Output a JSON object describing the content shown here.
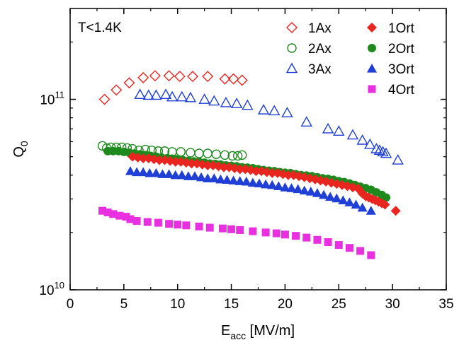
{
  "chart_data": {
    "type": "scatter",
    "title": "",
    "annotation": "T<1.4K",
    "xlabel": {
      "main": "E",
      "sub": "acc",
      "suffix": " [MV/m]"
    },
    "ylabel": {
      "main": "Q",
      "sub": "0"
    },
    "xlim": [
      0,
      35
    ],
    "ylim": [
      10000000000.0,
      300000000000.0
    ],
    "y_scale": "log",
    "x_ticks": [
      0,
      5,
      10,
      15,
      20,
      25,
      30,
      35
    ],
    "x_tick_labels": [
      "0",
      "5",
      "10",
      "15",
      "20",
      "25",
      "30",
      "35"
    ],
    "y_tick_labels": [
      {
        "value": 10000000000.0,
        "base": "10",
        "exp": "10"
      },
      {
        "value": 100000000000.0,
        "base": "10",
        "exp": "11"
      }
    ],
    "grid": false,
    "legend_position": "top-right",
    "series": [
      {
        "name": "1Ax",
        "color": "#e8251f",
        "marker": "diamond-open",
        "x": [
          3.2,
          4.3,
          5.5,
          6.8,
          7.9,
          9.2,
          10.2,
          11.4,
          12.8,
          14.4,
          15.2,
          16.0
        ],
        "y": [
          100000000000.0,
          112000000000.0,
          122000000000.0,
          130000000000.0,
          133000000000.0,
          133000000000.0,
          132000000000.0,
          132000000000.0,
          132000000000.0,
          128000000000.0,
          128000000000.0,
          126000000000.0
        ]
      },
      {
        "name": "2Ax",
        "color": "#1e8a1e",
        "marker": "circle-open",
        "x": [
          3.0,
          3.4,
          3.8,
          4.3,
          4.8,
          5.3,
          5.8,
          6.4,
          7.0,
          7.6,
          8.2,
          8.8,
          9.5,
          10.3,
          11.2,
          12.0,
          12.8,
          13.6,
          14.4,
          15.1,
          15.6,
          16.0
        ],
        "y": [
          57000000000.0,
          55500000000.0,
          56000000000.0,
          56000000000.0,
          56000000000.0,
          55500000000.0,
          55000000000.0,
          54000000000.0,
          54500000000.0,
          54000000000.0,
          53500000000.0,
          53500000000.0,
          53000000000.0,
          53000000000.0,
          52500000000.0,
          52000000000.0,
          52000000000.0,
          51500000000.0,
          51000000000.0,
          50500000000.0,
          50500000000.0,
          51000000000.0
        ]
      },
      {
        "name": "3Ax",
        "color": "#1f3fd6",
        "marker": "triangle-open",
        "x": [
          6.5,
          7.3,
          8.0,
          8.9,
          9.5,
          10.4,
          11.2,
          12.5,
          13.4,
          14.5,
          15.5,
          16.5,
          18.0,
          19.0,
          20.2,
          22.0,
          24.0,
          25.0,
          26.3,
          27.2,
          27.9,
          28.5,
          28.8,
          29.1,
          29.4,
          30.5
        ],
        "y": [
          106000000000.0,
          105000000000.0,
          105000000000.0,
          106000000000.0,
          103000000000.0,
          103000000000.0,
          102000000000.0,
          100000000000.0,
          98000000000.0,
          96000000000.0,
          95000000000.0,
          93000000000.0,
          88000000000.0,
          87000000000.0,
          85000000000.0,
          76000000000.0,
          70000000000.0,
          68000000000.0,
          65000000000.0,
          61000000000.0,
          58000000000.0,
          55000000000.0,
          54000000000.0,
          53000000000.0,
          52000000000.0,
          48000000000.0
        ]
      },
      {
        "name": "1Ort",
        "color": "#e8251f",
        "marker": "diamond-filled",
        "x": [
          5.8,
          6.3,
          6.8,
          7.3,
          7.8,
          8.3,
          8.8,
          9.3,
          9.8,
          10.3,
          10.8,
          11.3,
          11.8,
          12.3,
          12.8,
          13.3,
          13.8,
          14.3,
          14.8,
          15.3,
          15.8,
          16.3,
          16.8,
          17.3,
          17.8,
          18.3,
          18.8,
          19.3,
          19.8,
          20.3,
          20.8,
          21.3,
          21.8,
          22.3,
          22.8,
          23.3,
          23.8,
          24.3,
          24.8,
          25.3,
          25.8,
          26.3,
          26.8,
          27.2,
          27.5,
          27.8,
          28.1,
          28.4,
          28.7,
          29.0,
          29.3,
          30.3
        ],
        "y": [
          50000000000.0,
          49500000000.0,
          49000000000.0,
          49000000000.0,
          48500000000.0,
          48000000000.0,
          48000000000.0,
          47500000000.0,
          47000000000.0,
          47000000000.0,
          46500000000.0,
          46000000000.0,
          46000000000.0,
          45500000000.0,
          45000000000.0,
          45000000000.0,
          44500000000.0,
          44000000000.0,
          44000000000.0,
          43500000000.0,
          43000000000.0,
          43000000000.0,
          42500000000.0,
          42000000000.0,
          42000000000.0,
          41500000000.0,
          41000000000.0,
          41000000000.0,
          40500000000.0,
          40000000000.0,
          40000000000.0,
          39500000000.0,
          39000000000.0,
          38500000000.0,
          38000000000.0,
          37500000000.0,
          37000000000.0,
          36500000000.0,
          36000000000.0,
          35500000000.0,
          35000000000.0,
          34500000000.0,
          34000000000.0,
          32000000000.0,
          31000000000.0,
          30500000000.0,
          30000000000.0,
          29500000000.0,
          29000000000.0,
          28500000000.0,
          28000000000.0,
          26000000000.0
        ]
      },
      {
        "name": "2Ort",
        "color": "#1e8a1e",
        "marker": "circle-filled",
        "x": [
          3.5,
          4.0,
          4.5,
          5.0,
          5.5,
          6.0,
          6.5,
          7.0,
          7.5,
          8.0,
          8.5,
          9.0,
          9.5,
          10.0,
          10.5,
          11.0,
          11.5,
          12.0,
          12.5,
          13.0,
          13.5,
          14.0,
          14.5,
          15.0,
          15.5,
          16.0,
          16.5,
          17.0,
          17.5,
          18.0,
          18.5,
          19.0,
          19.5,
          20.0,
          20.5,
          21.0,
          21.5,
          22.0,
          22.5,
          23.0,
          23.5,
          24.0,
          24.5,
          25.0,
          25.5,
          26.0,
          26.5,
          27.0,
          27.5,
          28.0,
          28.5,
          29.0,
          29.4
        ],
        "y": [
          53500000000.0,
          53500000000.0,
          53500000000.0,
          53000000000.0,
          52500000000.0,
          52000000000.0,
          51500000000.0,
          51000000000.0,
          50500000000.0,
          50000000000.0,
          49500000000.0,
          49000000000.0,
          48800000000.0,
          48500000000.0,
          48000000000.0,
          47500000000.0,
          47200000000.0,
          47000000000.0,
          46500000000.0,
          46000000000.0,
          45800000000.0,
          45500000000.0,
          45000000000.0,
          44800000000.0,
          44500000000.0,
          44000000000.0,
          43800000000.0,
          43500000000.0,
          43000000000.0,
          42500000000.0,
          42200000000.0,
          42000000000.0,
          41500000000.0,
          41200000000.0,
          41000000000.0,
          40500000000.0,
          40000000000.0,
          39800000000.0,
          39500000000.0,
          39000000000.0,
          38500000000.0,
          38200000000.0,
          37800000000.0,
          37200000000.0,
          36800000000.0,
          36200000000.0,
          35500000000.0,
          34800000000.0,
          34200000000.0,
          33500000000.0,
          32500000000.0,
          31500000000.0,
          30500000000.0
        ]
      },
      {
        "name": "3Ort",
        "color": "#1f3fd6",
        "marker": "triangle-filled",
        "x": [
          5.6,
          6.2,
          6.8,
          7.4,
          8.0,
          8.6,
          9.2,
          9.8,
          10.4,
          11.0,
          11.6,
          12.2,
          12.8,
          13.4,
          14.0,
          14.6,
          15.2,
          15.8,
          16.4,
          17.0,
          17.6,
          18.2,
          18.8,
          19.4,
          20.0,
          20.6,
          21.2,
          21.8,
          22.4,
          23.0,
          23.6,
          24.2,
          24.8,
          25.4,
          26.0,
          26.6,
          27.2,
          28.0
        ],
        "y": [
          42000000000.0,
          41500000000.0,
          41500000000.0,
          41000000000.0,
          41000000000.0,
          40500000000.0,
          40500000000.0,
          40000000000.0,
          40000000000.0,
          39500000000.0,
          39500000000.0,
          39000000000.0,
          38500000000.0,
          38500000000.0,
          38000000000.0,
          37800000000.0,
          37500000000.0,
          37200000000.0,
          37000000000.0,
          36500000000.0,
          36200000000.0,
          35800000000.0,
          35500000000.0,
          35000000000.0,
          34500000000.0,
          34200000000.0,
          33800000000.0,
          33200000000.0,
          32800000000.0,
          32200000000.0,
          31500000000.0,
          30800000000.0,
          30200000000.0,
          29500000000.0,
          28800000000.0,
          28000000000.0,
          27000000000.0,
          26000000000.0
        ]
      },
      {
        "name": "4Ort",
        "color": "#e830e0",
        "marker": "square-filled",
        "x": [
          3.0,
          3.5,
          4.0,
          4.6,
          5.2,
          5.6,
          6.2,
          7.2,
          8.2,
          9.2,
          10.0,
          10.8,
          12.0,
          13.0,
          14.2,
          15.0,
          15.8,
          17.0,
          18.2,
          19.2,
          20.0,
          21.0,
          22.0,
          23.0,
          24.0,
          25.0,
          26.0,
          27.0,
          28.0
        ],
        "y": [
          26000000000.0,
          25500000000.0,
          25000000000.0,
          24500000000.0,
          24200000000.0,
          23500000000.0,
          23000000000.0,
          22700000000.0,
          22500000000.0,
          22200000000.0,
          22000000000.0,
          21800000000.0,
          21500000000.0,
          21200000000.0,
          21000000000.0,
          20800000000.0,
          20600000000.0,
          20300000000.0,
          20000000000.0,
          19800000000.0,
          19500000000.0,
          19200000000.0,
          18800000000.0,
          18300000000.0,
          17800000000.0,
          17200000000.0,
          16600000000.0,
          16000000000.0,
          15200000000.0
        ]
      }
    ]
  }
}
